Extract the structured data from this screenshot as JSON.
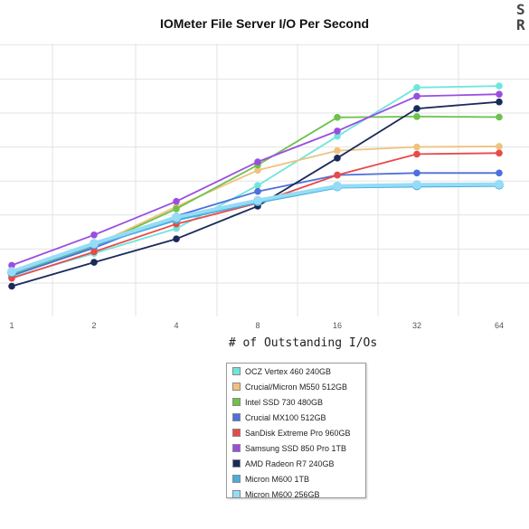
{
  "chart_data": {
    "type": "line",
    "title": "IOMeter File Server I/O Per Second",
    "xlabel": "# of Outstanding I/Os",
    "ylabel": "",
    "x": [
      1,
      2,
      4,
      8,
      16,
      32,
      64
    ],
    "x_tick_labels": [
      "1",
      "2",
      "4",
      "8",
      "16",
      "32",
      "64"
    ],
    "grid": true,
    "legend_placement": "bottom-center",
    "series": [
      {
        "name": "OCZ Vertex 460 240GB",
        "color": "#6ee6dc",
        "values": [
          6.7,
          16.3,
          26.3,
          43.6,
          63.4,
          83.0,
          83.6
        ]
      },
      {
        "name": "Crucial/Micron M550 512GB",
        "color": "#f0c27e",
        "values": [
          7.9,
          19.5,
          35.1,
          49.7,
          57.6,
          59.1,
          59.3
        ]
      },
      {
        "name": "Intel SSD 730 480GB",
        "color": "#6cc24a",
        "values": [
          7.8,
          19.1,
          34.2,
          51.8,
          71.0,
          71.3,
          71.1
        ]
      },
      {
        "name": "Crucial MX100 512GB",
        "color": "#4f6fdc",
        "values": [
          7.3,
          18.5,
          31.3,
          41.2,
          47.8,
          48.6,
          48.6
        ]
      },
      {
        "name": "SanDisk Extreme Pro 960GB",
        "color": "#e84a4a",
        "values": [
          6.3,
          16.9,
          28.1,
          36.5,
          47.8,
          56.2,
          56.6
        ]
      },
      {
        "name": "Samsung SSD 850 Pro 1TB",
        "color": "#9a4ee0",
        "values": [
          11.5,
          23.7,
          37.2,
          53.1,
          65.5,
          79.5,
          80.3
        ]
      },
      {
        "name": "AMD Radeon R7 240GB",
        "color": "#1a2a5a",
        "values": [
          3.1,
          12.7,
          22.1,
          35.3,
          54.6,
          74.5,
          77.2
        ]
      },
      {
        "name": "Micron M600 1TB",
        "color": "#4aaee0",
        "values": [
          8.7,
          19.9,
          30.0,
          37.1,
          43.1,
          43.5,
          43.8
        ]
      },
      {
        "name": "Micron M600 256GB",
        "color": "#96dcf5",
        "values": [
          9.0,
          20.3,
          30.8,
          37.6,
          43.4,
          43.9,
          44.1
        ]
      }
    ]
  }
}
